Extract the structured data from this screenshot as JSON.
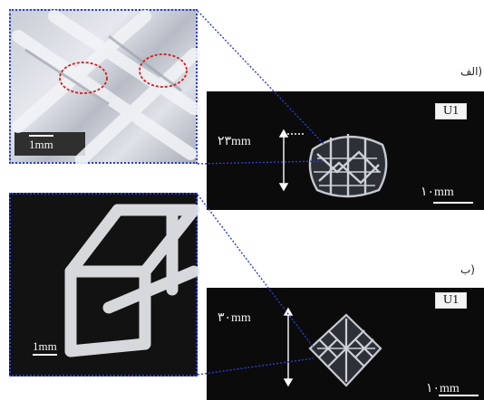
{
  "panels": [
    {
      "label": "الف)",
      "badge": "U1",
      "height_text": "۲۳mm",
      "scale_text": "۱۰mm",
      "inset_scale": "1mm"
    },
    {
      "label": "ب)",
      "badge": "U1",
      "height_text": "۳۰mm",
      "scale_text": "۱۰mm",
      "inset_scale": "1mm"
    }
  ],
  "colors": {
    "dotted_border": "#2a3fd1",
    "defect_circle": "#d11f1f",
    "background": "#0b0b0b"
  }
}
